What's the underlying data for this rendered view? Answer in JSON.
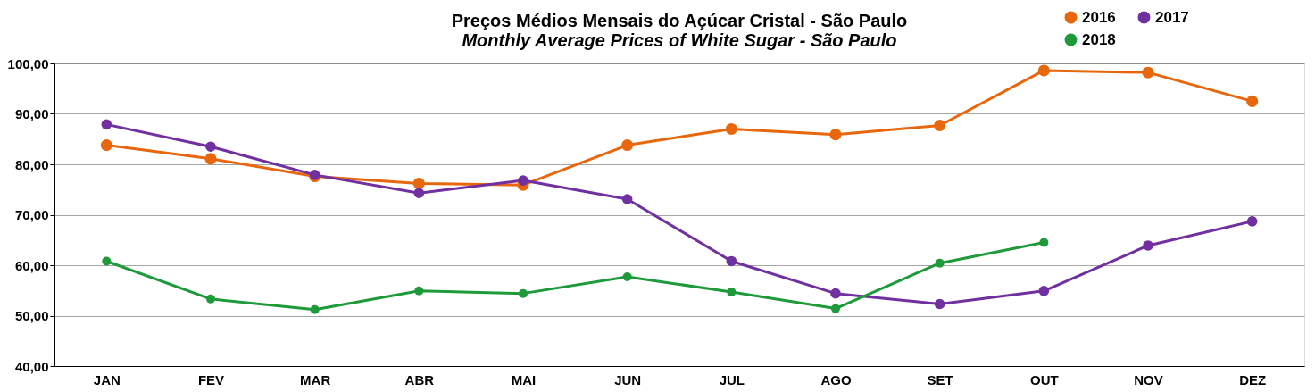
{
  "chart_data": {
    "type": "line",
    "title": "Preços Médios Mensais do Açúcar Cristal - São Paulo",
    "subtitle": "Monthly Average Prices of White Sugar  - São Paulo",
    "categories": [
      "JAN",
      "FEV",
      "MAR",
      "ABR",
      "MAI",
      "JUN",
      "JUL",
      "AGO",
      "SET",
      "OUT",
      "NOV",
      "DEZ"
    ],
    "series": [
      {
        "name": "2016",
        "color": "#e8670c",
        "values": [
          83.8,
          81.1,
          77.6,
          76.2,
          75.9,
          83.8,
          87.0,
          85.9,
          87.7,
          98.6,
          98.2,
          92.5
        ]
      },
      {
        "name": "2017",
        "color": "#7030a0",
        "values": [
          87.9,
          83.5,
          77.9,
          74.3,
          76.8,
          73.1,
          60.8,
          54.4,
          52.3,
          54.9,
          63.9,
          68.7
        ]
      },
      {
        "name": "2018",
        "color": "#1e9a3a",
        "values": [
          60.8,
          53.3,
          51.2,
          54.9,
          54.4,
          57.7,
          54.7,
          51.4,
          60.4,
          64.5,
          null,
          null
        ]
      }
    ],
    "ylim": [
      40,
      100
    ],
    "yticks": [
      {
        "value": 40,
        "label": "40,00"
      },
      {
        "value": 50,
        "label": "50,00"
      },
      {
        "value": 60,
        "label": "60,00"
      },
      {
        "value": 70,
        "label": "70,00"
      },
      {
        "value": 80,
        "label": "80,00"
      },
      {
        "value": 90,
        "label": "90,00"
      },
      {
        "value": 100,
        "label": "100,00"
      }
    ],
    "grid": "y",
    "legend": "top right",
    "marker": "circle",
    "line_style": "solid"
  }
}
